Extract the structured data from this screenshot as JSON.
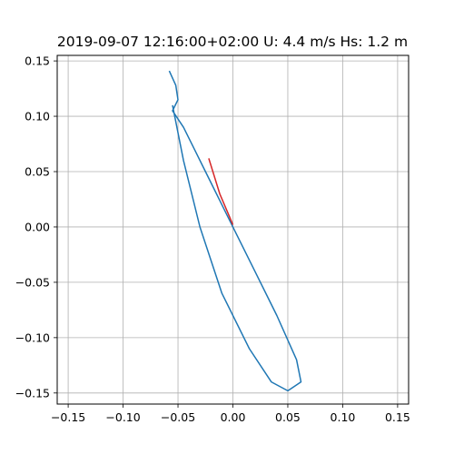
{
  "chart_data": {
    "type": "line",
    "title": "2019-09-07 12:16:00+02:00 U: 4.4 m/s Hs: 1.2 m",
    "xlabel": "",
    "ylabel": "",
    "xlim": [
      -0.16,
      0.16
    ],
    "ylim": [
      -0.16,
      0.155
    ],
    "grid": true,
    "x_ticks": [
      -0.15,
      -0.1,
      -0.05,
      0.0,
      0.05,
      0.1,
      0.15
    ],
    "y_ticks": [
      -0.15,
      -0.1,
      -0.05,
      0.0,
      0.05,
      0.1,
      0.15
    ],
    "x_tick_labels": [
      "−0.15",
      "−0.10",
      "−0.05",
      "0.00",
      "0.05",
      "0.10",
      "0.15"
    ],
    "y_tick_labels": [
      "−0.15",
      "−0.10",
      "−0.05",
      "0.00",
      "0.05",
      "0.10",
      "0.15"
    ],
    "series": [
      {
        "color": "#1f77b4",
        "x": [
          -0.058,
          -0.052,
          -0.05,
          -0.055,
          -0.045,
          -0.035,
          -0.025,
          -0.01,
          0.005,
          0.02,
          0.04,
          0.058,
          0.062,
          0.05,
          0.035,
          0.015,
          -0.01,
          -0.03,
          -0.045,
          -0.055
        ],
        "y": [
          0.141,
          0.128,
          0.115,
          0.105,
          0.09,
          0.07,
          0.05,
          0.02,
          -0.01,
          -0.04,
          -0.08,
          -0.12,
          -0.14,
          -0.148,
          -0.14,
          -0.11,
          -0.06,
          0.0,
          0.06,
          0.11
        ]
      },
      {
        "color": "#d62728",
        "x": [
          -0.022,
          -0.012,
          0.0
        ],
        "y": [
          0.062,
          0.03,
          0.002
        ]
      }
    ]
  }
}
